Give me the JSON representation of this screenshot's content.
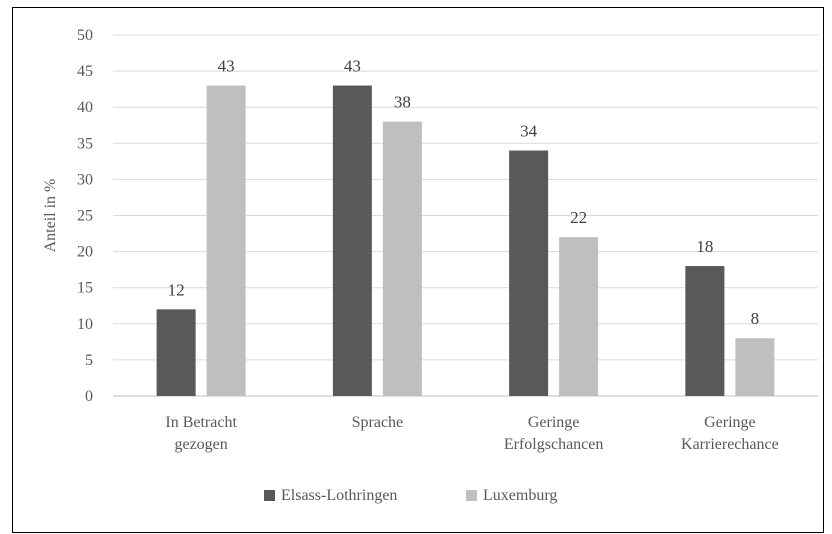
{
  "chart_data": {
    "type": "bar",
    "categories": [
      [
        "In Betracht",
        "gezogen"
      ],
      [
        "Sprache"
      ],
      [
        "Geringe",
        "Erfolgschancen"
      ],
      [
        "Geringe",
        "Karrierechance"
      ]
    ],
    "series": [
      {
        "name": "Elsass-Lothringen",
        "color": "#595959",
        "values": [
          12,
          43,
          34,
          18
        ]
      },
      {
        "name": "Luxemburg",
        "color": "#bfbfbf",
        "values": [
          43,
          38,
          22,
          8
        ]
      }
    ],
    "ylabel": "Anteil in %",
    "xlabel": "",
    "ylim": [
      0,
      50
    ],
    "yticks": [
      0,
      5,
      10,
      15,
      20,
      25,
      30,
      35,
      40,
      45,
      50
    ],
    "grid": true,
    "legend": "bottom",
    "title": ""
  }
}
